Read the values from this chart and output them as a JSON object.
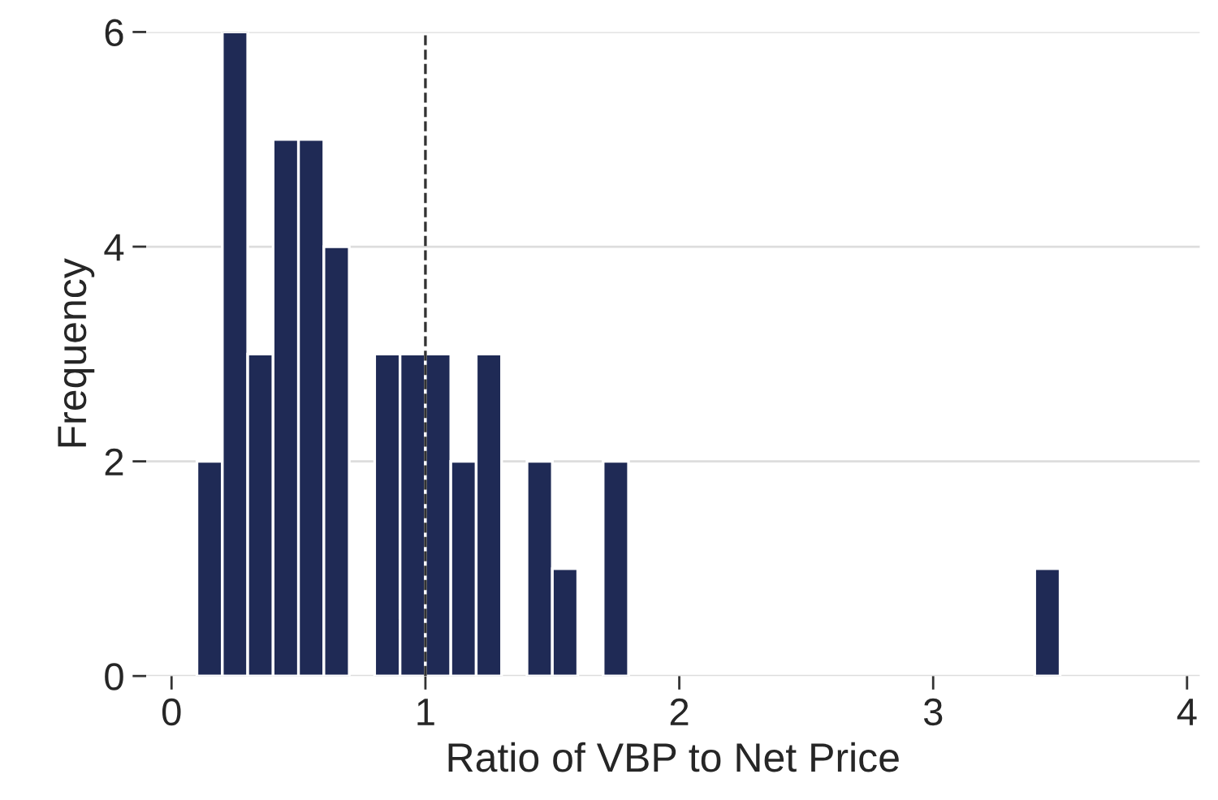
{
  "chart_data": {
    "type": "histogram",
    "xlabel": "Ratio of VBP to Net Price",
    "ylabel": "Frequency",
    "bins": [
      0.1,
      0.2,
      0.3,
      0.4,
      0.5,
      0.6,
      0.7,
      0.8,
      0.9,
      1.0,
      1.1,
      1.2,
      1.3,
      1.4,
      1.5,
      1.6,
      1.7,
      1.8,
      1.9,
      2.0,
      2.1,
      2.2,
      2.3,
      2.4,
      2.5,
      2.6,
      2.7,
      2.8,
      2.9,
      3.0,
      3.1,
      3.2,
      3.3,
      3.4,
      3.5
    ],
    "values": [
      2,
      6,
      3,
      5,
      5,
      4,
      0,
      3,
      3,
      3,
      2,
      3,
      0,
      2,
      1,
      0,
      2,
      0,
      0,
      0,
      0,
      0,
      0,
      0,
      0,
      0,
      0,
      0,
      0,
      0,
      0,
      0,
      0,
      1
    ],
    "color": "#1f2a55",
    "xlim": [
      -0.1,
      4.05
    ],
    "xticks": [
      0,
      1,
      2,
      3,
      4
    ],
    "ylim": [
      0,
      6
    ],
    "yticks": [
      0,
      2,
      4,
      6
    ],
    "grid": "y",
    "ref_lines": [
      {
        "axis": "x",
        "value": 1,
        "line_style": "dashed",
        "color": "#333333"
      }
    ]
  }
}
